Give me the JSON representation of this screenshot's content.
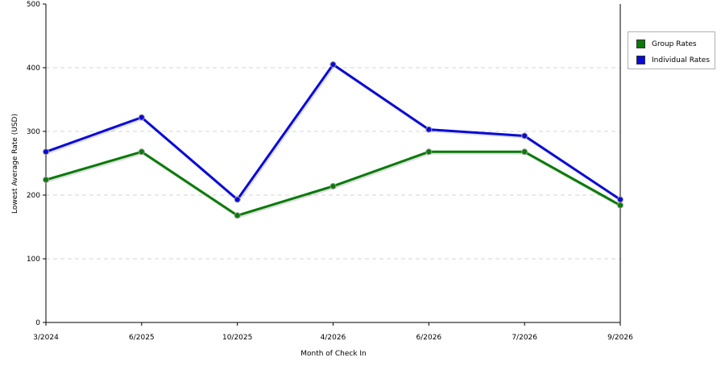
{
  "chart_data": {
    "type": "line",
    "title": "",
    "xlabel": "Month of Check In",
    "ylabel": "Lowest Average Rate (USD)",
    "ylim": [
      0,
      500
    ],
    "yticks": [
      "0",
      "100",
      "200",
      "300",
      "400",
      "500"
    ],
    "categories": [
      "3/2024",
      "6/2025",
      "10/2025",
      "4/2026",
      "6/2026",
      "7/2026",
      "9/2026"
    ],
    "grid": true,
    "legend_position": "right",
    "series": [
      {
        "name": "Group Rates",
        "color": "#0a7a0a",
        "values": [
          224,
          268,
          168,
          214,
          268,
          268,
          184
        ]
      },
      {
        "name": "Individual Rates",
        "color": "#0a0ad6",
        "values": [
          268,
          322,
          193,
          405,
          303,
          293,
          193
        ]
      }
    ]
  }
}
